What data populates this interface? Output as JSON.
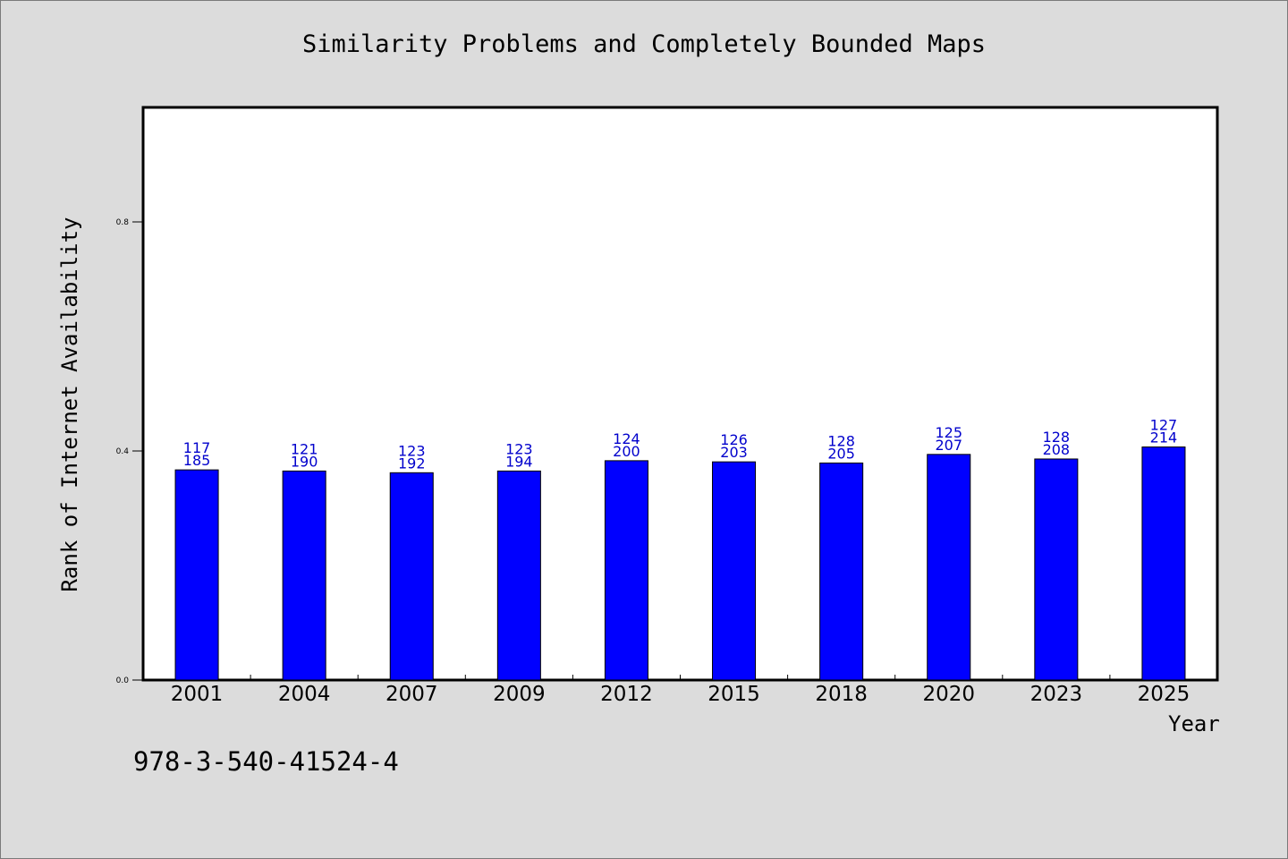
{
  "page": {
    "title": "Similarity Problems and Completely Bounded Maps",
    "footer_text": "978-3-540-41524-4"
  },
  "chart_data": {
    "type": "bar",
    "title": "Similarity Problems and Completely Bounded Maps",
    "xlabel": "Year",
    "ylabel": "Rank of Internet Availability",
    "categories": [
      "2001",
      "2004",
      "2007",
      "2009",
      "2012",
      "2015",
      "2018",
      "2020",
      "2023",
      "2025"
    ],
    "series": [
      {
        "values": [
          0.367,
          0.365,
          0.362,
          0.365,
          0.383,
          0.381,
          0.379,
          0.394,
          0.386,
          0.407
        ],
        "color": "#0000ff"
      }
    ],
    "data_labels_top": [
      "117",
      "121",
      "123",
      "123",
      "124",
      "126",
      "128",
      "125",
      "128",
      "127"
    ],
    "data_labels_bottom": [
      "185",
      "190",
      "192",
      "194",
      "200",
      "203",
      "205",
      "207",
      "208",
      "214"
    ],
    "y_ticks": [
      "0.0",
      "0.4",
      "0.8"
    ],
    "ylim": [
      0,
      1.0
    ],
    "grid": false,
    "legend": "none",
    "colors": {
      "bar": "#0000ff",
      "data_label": "#0000cc",
      "background": "#dcdcdc",
      "plot": "#ffffff"
    }
  }
}
